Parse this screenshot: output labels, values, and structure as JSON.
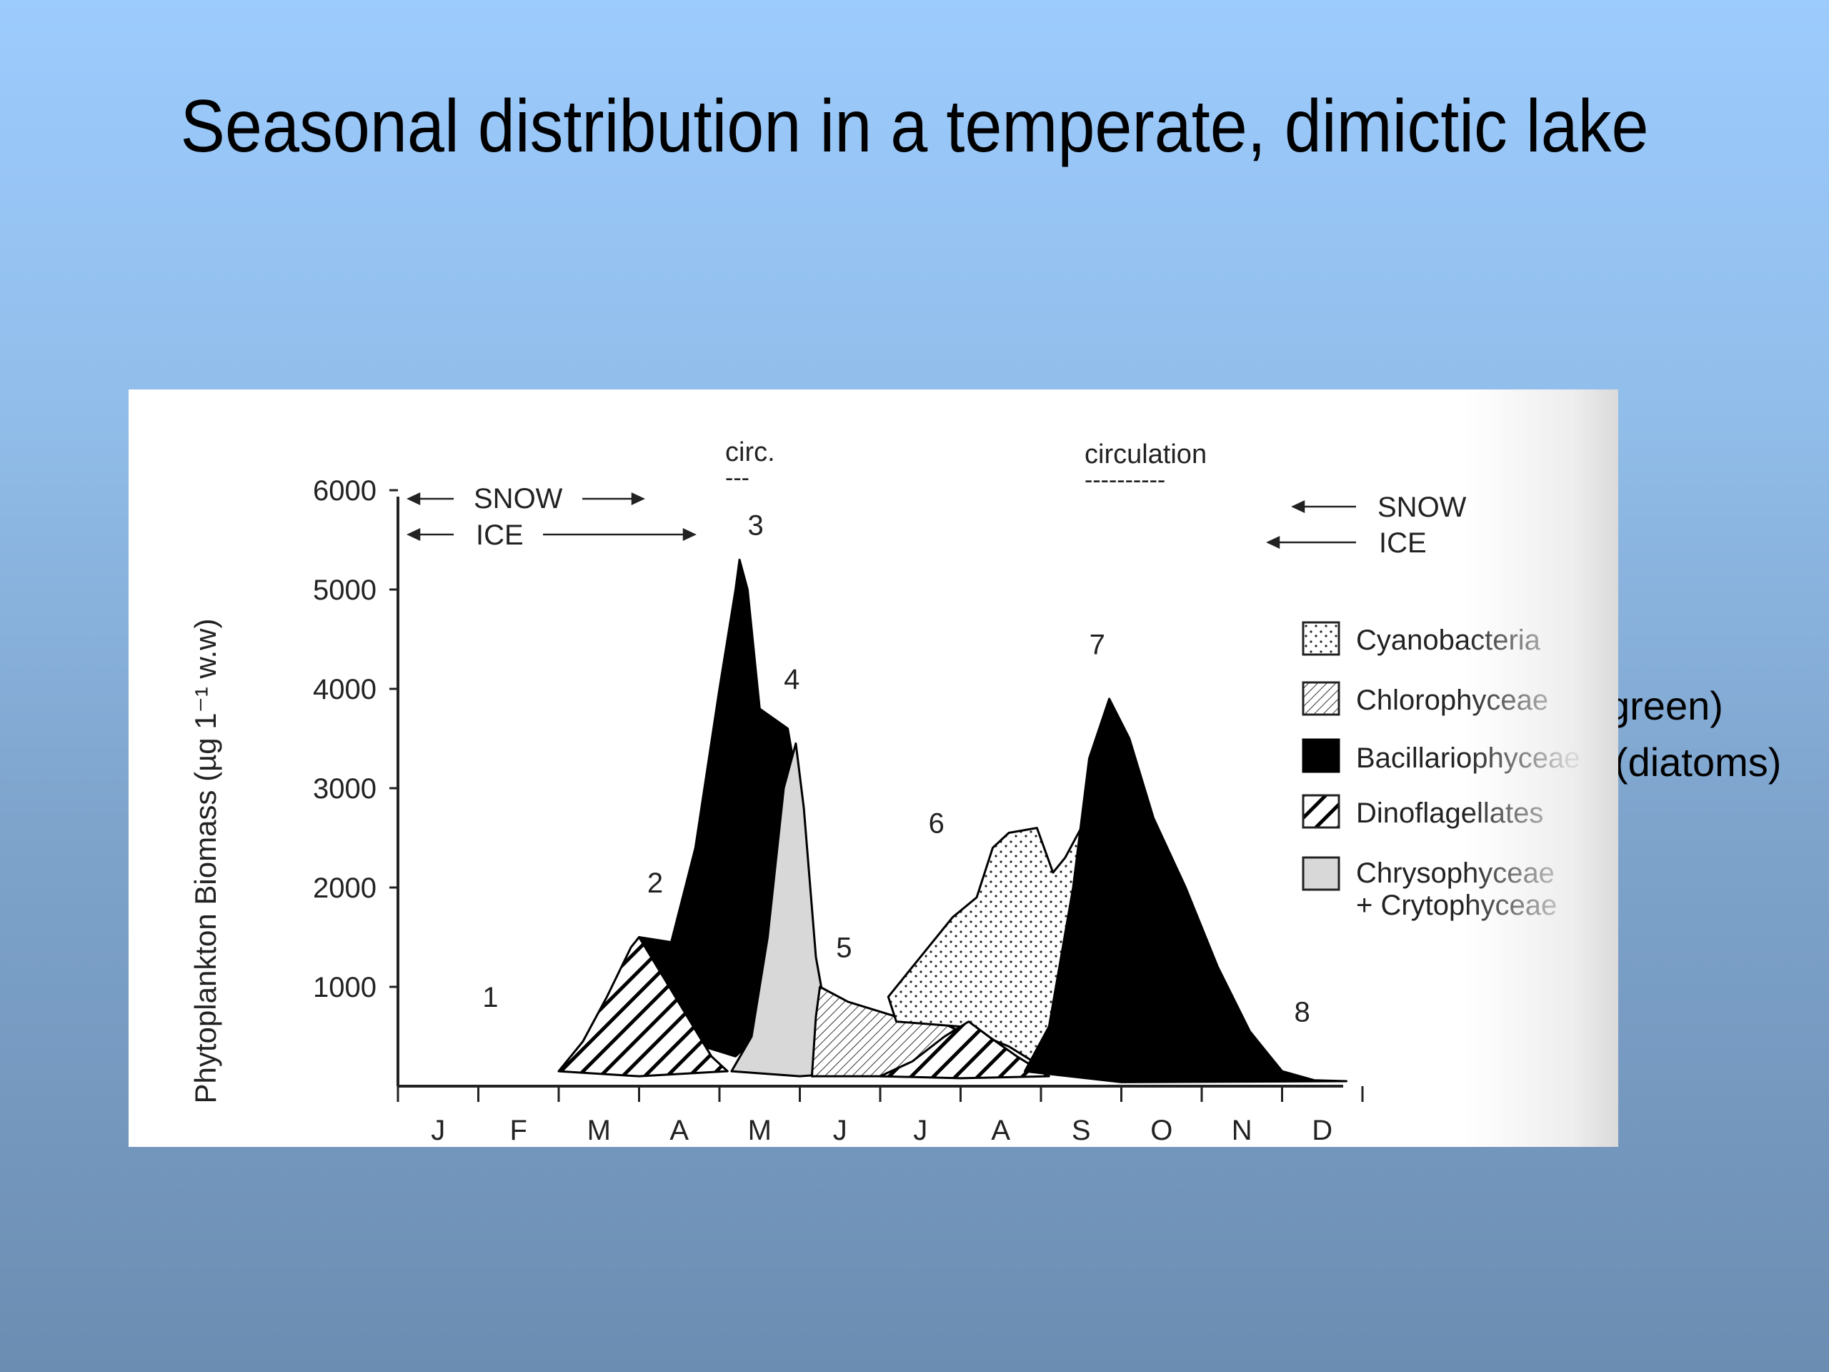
{
  "slide": {
    "title": "Seasonal distribution in a temperate, dimictic lake",
    "side_notes": [
      "green)",
      "(diatoms)"
    ]
  },
  "colors": {
    "background_top": "#9ccbfd",
    "background_bottom": "#6c8db2",
    "bacillariophyceae": "#000000",
    "chrysophyceae": "#d8d8d8"
  },
  "chart_data": {
    "type": "area",
    "title": "",
    "ylabel": "Phytoplankton Biomass (µg 1⁻¹ w.w)",
    "xlabel": "",
    "ylim": [
      0,
      6000
    ],
    "yticks": [
      1000,
      2000,
      3000,
      4000,
      5000,
      6000
    ],
    "months": [
      "J",
      "F",
      "M",
      "A",
      "M",
      "J",
      "J",
      "A",
      "S",
      "O",
      "N",
      "D"
    ],
    "x_unit_note": "month index (0 = start of January, 12 = end of December)",
    "annotations": {
      "circ_early": "circ.",
      "circ_early_dash": "---",
      "circ_late": "circulation",
      "circ_late_dash": "----------",
      "snow_left": "SNOW",
      "ice_left": "ICE",
      "snow_right": "SNOW",
      "ice_right": "ICE"
    },
    "stage_labels": [
      {
        "label": "1",
        "x": 1.15,
        "y": 800
      },
      {
        "label": "2",
        "x": 3.2,
        "y": 1950
      },
      {
        "label": "3",
        "x": 4.45,
        "y": 5550
      },
      {
        "label": "4",
        "x": 4.9,
        "y": 4000
      },
      {
        "label": "5",
        "x": 5.55,
        "y": 1300
      },
      {
        "label": "6",
        "x": 6.7,
        "y": 2550
      },
      {
        "label": "7",
        "x": 8.7,
        "y": 4350
      },
      {
        "label": "8",
        "x": 11.25,
        "y": 650
      }
    ],
    "legend": [
      {
        "name": "Cyanobacteria",
        "pattern": "dots"
      },
      {
        "name": "Chlorophyceae",
        "pattern": "fine-hatch"
      },
      {
        "name": "Bacillariophyceae",
        "pattern": "solid-black"
      },
      {
        "name": "Dinoflagellates",
        "pattern": "bold-hatch"
      },
      {
        "name": "Chrysophyceae",
        "name2": "+ Crytophyceae",
        "pattern": "light-gray"
      }
    ],
    "series": [
      {
        "name": "Bacillariophyceae",
        "pattern": "solid-black",
        "points": [
          [
            3.0,
            1500
          ],
          [
            3.4,
            1450
          ],
          [
            3.7,
            2400
          ],
          [
            4.0,
            4000
          ],
          [
            4.2,
            5000
          ],
          [
            4.25,
            5300
          ],
          [
            4.35,
            5000
          ],
          [
            4.5,
            3800
          ],
          [
            4.85,
            3600
          ],
          [
            5.0,
            2900
          ],
          [
            4.8,
            1300
          ],
          [
            4.6,
            600
          ],
          [
            4.2,
            300
          ],
          [
            3.8,
            400
          ],
          [
            3.3,
            1000
          ]
        ]
      },
      {
        "name": "Dinoflagellates",
        "pattern": "bold-hatch",
        "points": [
          [
            2.0,
            150
          ],
          [
            2.3,
            450
          ],
          [
            2.6,
            900
          ],
          [
            2.9,
            1400
          ],
          [
            3.0,
            1500
          ],
          [
            3.3,
            1100
          ],
          [
            3.6,
            700
          ],
          [
            3.9,
            300
          ],
          [
            4.1,
            150
          ],
          [
            3.0,
            100
          ]
        ]
      },
      {
        "name": "Chrysophyceae",
        "pattern": "light-gray",
        "points": [
          [
            4.15,
            150
          ],
          [
            4.4,
            500
          ],
          [
            4.6,
            1500
          ],
          [
            4.8,
            3000
          ],
          [
            4.95,
            3450
          ],
          [
            5.05,
            2800
          ],
          [
            5.2,
            1300
          ],
          [
            5.4,
            400
          ],
          [
            5.9,
            150
          ],
          [
            5.0,
            100
          ]
        ]
      },
      {
        "name": "Chlorophyceae",
        "pattern": "fine-hatch",
        "points": [
          [
            5.15,
            100
          ],
          [
            5.2,
            700
          ],
          [
            5.25,
            1000
          ],
          [
            5.6,
            850
          ],
          [
            6.2,
            700
          ],
          [
            6.6,
            700
          ],
          [
            7.0,
            550
          ],
          [
            6.9,
            250
          ],
          [
            6.6,
            100
          ]
        ]
      },
      {
        "name": "Cyanobacteria",
        "pattern": "dots",
        "points": [
          [
            6.2,
            650
          ],
          [
            6.1,
            900
          ],
          [
            6.4,
            1200
          ],
          [
            6.9,
            1700
          ],
          [
            7.2,
            1900
          ],
          [
            7.4,
            2400
          ],
          [
            7.6,
            2550
          ],
          [
            7.95,
            2600
          ],
          [
            8.15,
            2150
          ],
          [
            8.3,
            2300
          ],
          [
            8.5,
            2600
          ],
          [
            8.7,
            1900
          ],
          [
            8.3,
            900
          ],
          [
            8.0,
            200
          ],
          [
            7.6,
            400
          ],
          [
            7.0,
            600
          ]
        ]
      },
      {
        "name": "Dinoflagellates",
        "pattern": "bold-hatch",
        "points": [
          [
            6.0,
            100
          ],
          [
            6.4,
            250
          ],
          [
            6.8,
            500
          ],
          [
            7.1,
            650
          ],
          [
            7.35,
            500
          ],
          [
            7.7,
            300
          ],
          [
            8.1,
            100
          ],
          [
            7.0,
            80
          ]
        ]
      },
      {
        "name": "Bacillariophyceae",
        "pattern": "solid-black",
        "points": [
          [
            7.8,
            150
          ],
          [
            8.1,
            600
          ],
          [
            8.4,
            2000
          ],
          [
            8.6,
            3300
          ],
          [
            8.85,
            3900
          ],
          [
            9.1,
            3500
          ],
          [
            9.4,
            2700
          ],
          [
            9.8,
            2000
          ],
          [
            10.2,
            1200
          ],
          [
            10.6,
            550
          ],
          [
            11.0,
            150
          ],
          [
            11.4,
            60
          ],
          [
            11.8,
            50
          ],
          [
            9.0,
            40
          ]
        ]
      }
    ]
  }
}
